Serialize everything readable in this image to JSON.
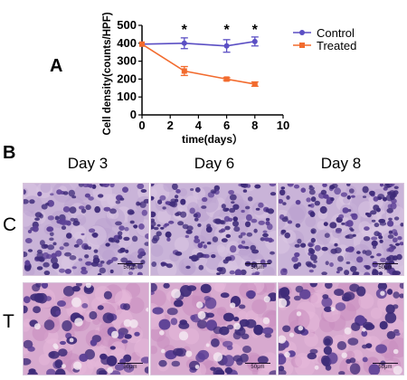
{
  "panels": {
    "a_label": "A",
    "b_label": "B"
  },
  "chart_data": {
    "type": "line",
    "xlabel": "time(days）",
    "ylabel": "Cell density(counts/HPF)",
    "xlim": [
      0,
      10
    ],
    "ylim": [
      0,
      500
    ],
    "xticks": [
      "0",
      "2",
      "4",
      "6",
      "8",
      "10"
    ],
    "yticks": [
      "0",
      "100",
      "200",
      "300",
      "400",
      "500"
    ],
    "grid": false,
    "legend_position": "top-right",
    "significance_marker": "*",
    "significant_x": [
      3,
      6,
      8
    ],
    "series": [
      {
        "name": "Control",
        "color": "#5b4fc4",
        "marker": "circle",
        "x": [
          0,
          3,
          6,
          8
        ],
        "y": [
          395,
          400,
          385,
          410
        ],
        "error": [
          0,
          30,
          35,
          25
        ]
      },
      {
        "name": "Treated",
        "color": "#f26b2e",
        "marker": "square",
        "x": [
          0,
          3,
          6,
          8
        ],
        "y": [
          395,
          245,
          200,
          172
        ],
        "error": [
          0,
          25,
          8,
          12
        ]
      }
    ]
  },
  "micrographs": {
    "columns": [
      "Day 3",
      "Day 6",
      "Day 8"
    ],
    "rows": [
      "C",
      "T"
    ],
    "scale_label": "50μm"
  }
}
